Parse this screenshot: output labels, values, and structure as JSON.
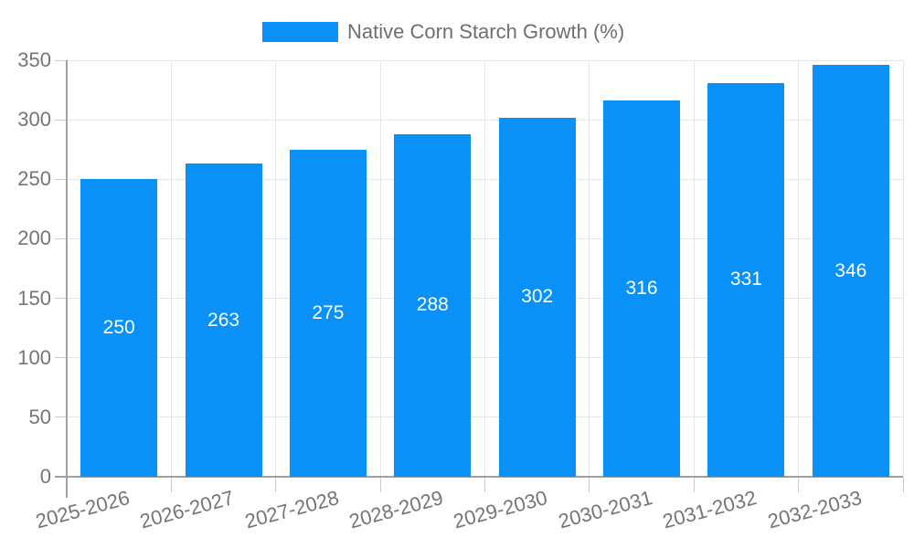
{
  "chart_data": {
    "type": "bar",
    "title": "",
    "legend": {
      "label": "Native Corn Starch Growth (%)",
      "position": "top"
    },
    "categories": [
      "2025-2026",
      "2026-2027",
      "2027-2028",
      "2028-2029",
      "2029-2030",
      "2030-2031",
      "2031-2032",
      "2032-2033"
    ],
    "series": [
      {
        "name": "Native Corn Starch Growth (%)",
        "values": [
          250,
          263,
          275,
          288,
          302,
          316,
          331,
          346
        ]
      }
    ],
    "value_labels": [
      "250",
      "263",
      "275",
      "288",
      "302",
      "316",
      "331",
      "346"
    ],
    "xlabel": "",
    "ylabel": "",
    "ylim": [
      0,
      350
    ],
    "yticks": [
      0,
      50,
      100,
      150,
      200,
      250,
      300,
      350
    ],
    "grid": true,
    "colors": {
      "bar": "#0991f8",
      "grid": "#e6e6e6",
      "tick": "#cccccc",
      "axis": "#a0a0a0",
      "text": "#757575",
      "value_label": "#ffffff"
    }
  }
}
